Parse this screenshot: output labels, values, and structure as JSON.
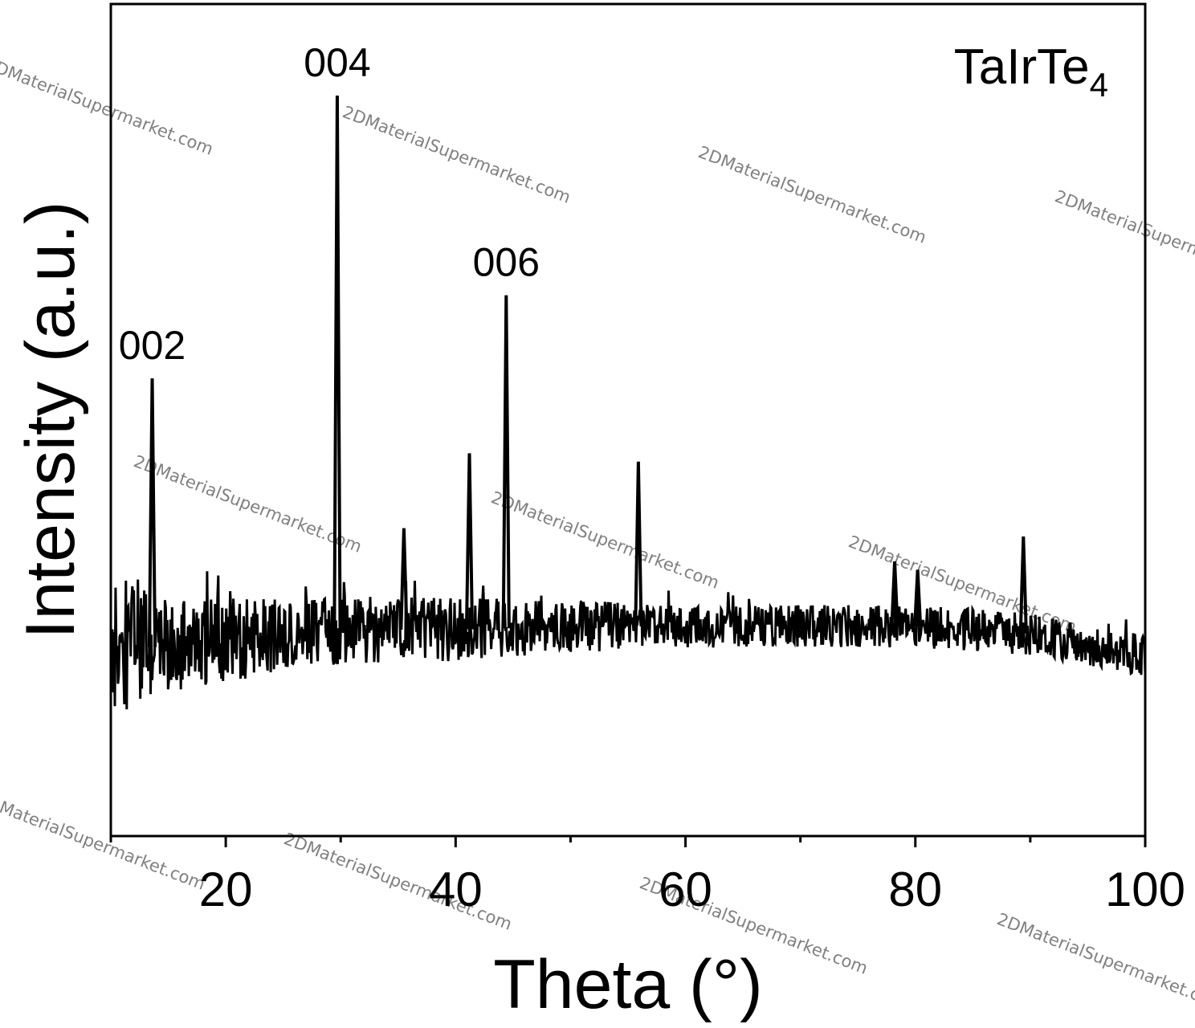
{
  "chart_data": {
    "type": "line",
    "title": "",
    "xlabel": "Theta (°)",
    "ylabel": "Intensity (a.u.)",
    "xlim": [
      10,
      100
    ],
    "ylim": [
      0,
      100
    ],
    "x_ticks": [
      20,
      40,
      60,
      80,
      100
    ],
    "x_minor_step": 10,
    "y_ticks_shown": false,
    "grid": false,
    "legend": "none",
    "line_color": "#000000",
    "sample_label": {
      "base": "TaIrTe",
      "subscript": "4"
    },
    "baseline": [
      {
        "x": 10,
        "y": 22
      },
      {
        "x": 15,
        "y": 23
      },
      {
        "x": 20,
        "y": 23.5
      },
      {
        "x": 30,
        "y": 24.8
      },
      {
        "x": 40,
        "y": 24.8
      },
      {
        "x": 50,
        "y": 25.2
      },
      {
        "x": 60,
        "y": 25.2
      },
      {
        "x": 70,
        "y": 25.2
      },
      {
        "x": 80,
        "y": 25.2
      },
      {
        "x": 90,
        "y": 24.3
      },
      {
        "x": 100,
        "y": 21.7
      }
    ],
    "noise_amplitude": [
      {
        "x": 10,
        "y": 11
      },
      {
        "x": 15,
        "y": 7
      },
      {
        "x": 25,
        "y": 5
      },
      {
        "x": 40,
        "y": 4.5
      },
      {
        "x": 60,
        "y": 3
      },
      {
        "x": 100,
        "y": 3
      }
    ],
    "peaks": [
      {
        "x": 13.6,
        "y": 55
      },
      {
        "x": 29.7,
        "y": 89
      },
      {
        "x": 35.5,
        "y": 37
      },
      {
        "x": 41.2,
        "y": 46
      },
      {
        "x": 44.4,
        "y": 65
      },
      {
        "x": 55.9,
        "y": 45
      },
      {
        "x": 78.2,
        "y": 33
      },
      {
        "x": 80.2,
        "y": 32
      },
      {
        "x": 89.4,
        "y": 36
      }
    ],
    "annotations": [
      {
        "text": "002",
        "x": 13.6
      },
      {
        "text": "004",
        "x": 29.7
      },
      {
        "text": "006",
        "x": 44.4
      }
    ]
  },
  "watermark": "2DMaterialSupermarket.com"
}
